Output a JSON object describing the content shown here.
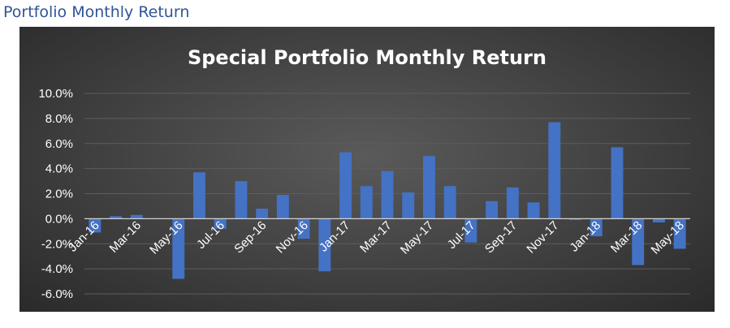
{
  "page": {
    "heading": "Portfolio Monthly Return"
  },
  "colors": {
    "bar": "#4472c4",
    "background": "#404040",
    "text": "#ffffff",
    "grid": "#5d5d5d",
    "axis": "#d0d0d0",
    "heading": "#2f5597"
  },
  "chart_data": {
    "type": "bar",
    "title": "Special Portfolio Monthly Return",
    "xlabel": "",
    "ylabel": "",
    "ylim": [
      -0.06,
      0.1
    ],
    "y_ticks": [
      "10.0%",
      "8.0%",
      "6.0%",
      "4.0%",
      "2.0%",
      "0.0%",
      "-2.0%",
      "-4.0%",
      "-6.0%"
    ],
    "grid": true,
    "legend": "none",
    "categories": [
      "Jan-16",
      "Feb-16",
      "Mar-16",
      "Apr-16",
      "May-16",
      "Jun-16",
      "Jul-16",
      "Aug-16",
      "Sep-16",
      "Oct-16",
      "Nov-16",
      "Dec-16",
      "Jan-17",
      "Feb-17",
      "Mar-17",
      "Apr-17",
      "May-17",
      "Jun-17",
      "Jul-17",
      "Aug-17",
      "Sep-17",
      "Oct-17",
      "Nov-17",
      "Dec-17",
      "Jan-18",
      "Feb-18",
      "Mar-18",
      "Apr-18",
      "May-18"
    ],
    "x_tick_labels": [
      "Jan-16",
      "Mar-16",
      "May-16",
      "Jul-16",
      "Sep-16",
      "Nov-16",
      "Jan-17",
      "Mar-17",
      "May-17",
      "Jul-17",
      "Sep-17",
      "Nov-17",
      "Jan-18",
      "Mar-18",
      "May-18"
    ],
    "values": [
      -0.011,
      0.002,
      0.003,
      0.0,
      -0.048,
      0.037,
      -0.008,
      0.03,
      0.008,
      0.019,
      -0.016,
      -0.042,
      0.053,
      0.026,
      0.038,
      0.021,
      0.05,
      0.026,
      -0.019,
      0.014,
      0.025,
      0.013,
      0.077,
      -0.001,
      -0.014,
      0.057,
      -0.037,
      -0.003,
      -0.024
    ]
  }
}
